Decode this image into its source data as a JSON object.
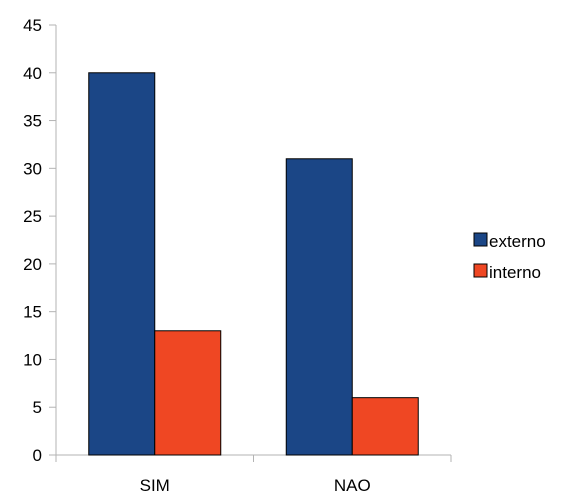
{
  "chart_data": {
    "type": "bar",
    "categories": [
      "SIM",
      "NAO"
    ],
    "series": [
      {
        "name": "externo",
        "values": [
          40,
          31
        ],
        "color": "#1b4686"
      },
      {
        "name": "interno",
        "values": [
          13,
          6
        ],
        "color": "#ef4723"
      }
    ],
    "ylim": [
      0,
      45
    ],
    "yticks": [
      0,
      5,
      10,
      15,
      20,
      25,
      30,
      35,
      40,
      45
    ],
    "grid": false,
    "legend_position": "right",
    "title": "",
    "xlabel": "",
    "ylabel": ""
  }
}
